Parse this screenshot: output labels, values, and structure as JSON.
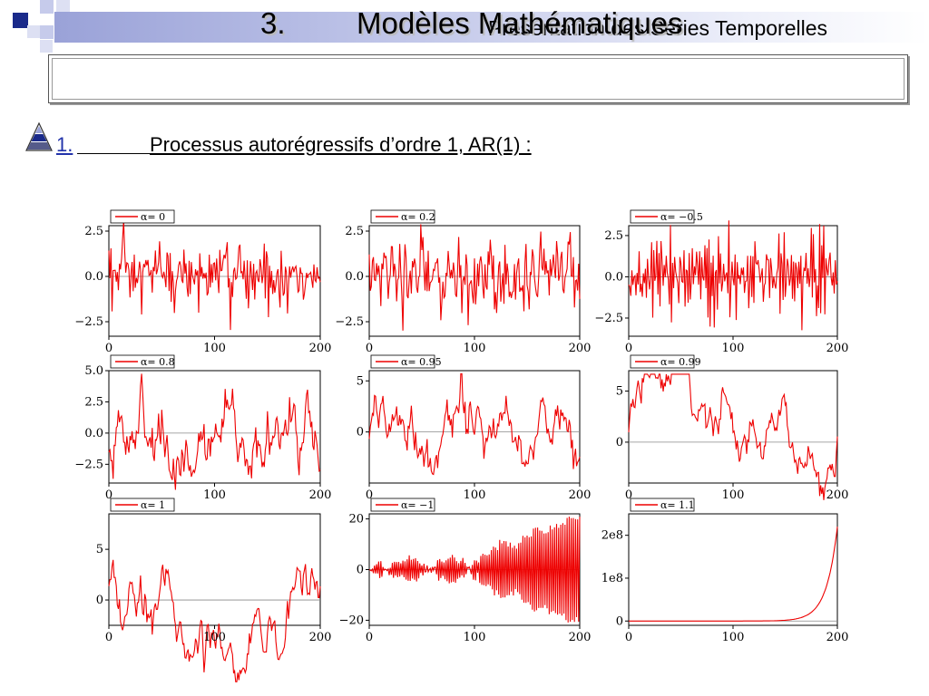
{
  "header": {
    "title": "Présentation des Séries Temporelles"
  },
  "slide": {
    "section_number": "3.",
    "section_title": "Modèles Mathématiques",
    "subsection_number": "1.",
    "subsection_title": "Processus autorégressifs d’ordre 1, AR(1) :"
  },
  "colors": {
    "series": "#ee0000",
    "accent_dark": "#1a2a8a",
    "accent_light": "#9aa2d8",
    "subsection_link": "#2233aa"
  },
  "icons": {
    "bullet": "triangle-pyramid-icon"
  },
  "chart_data": [
    {
      "type": "line",
      "legend": "α= 0",
      "alpha": 0,
      "x_range": [
        0,
        200
      ],
      "xticks": [
        0,
        100,
        200
      ],
      "ylim": [
        -3.3,
        2.8
      ],
      "yticks": [
        2.5,
        0.0,
        -2.5
      ],
      "ytick_labels": [
        "2.5",
        "0.0",
        "−2.5"
      ],
      "n": 200
    },
    {
      "type": "line",
      "legend": "α= 0.2",
      "alpha": 0.2,
      "x_range": [
        0,
        200
      ],
      "xticks": [
        0,
        100,
        200
      ],
      "ylim": [
        -3.3,
        2.8
      ],
      "yticks": [
        2.5,
        0.0,
        -2.5
      ],
      "ytick_labels": [
        "2.5",
        "0.0",
        "−2.5"
      ],
      "n": 200
    },
    {
      "type": "line",
      "legend": "α= −0.5",
      "alpha": -0.5,
      "x_range": [
        0,
        200
      ],
      "xticks": [
        0,
        100,
        200
      ],
      "ylim": [
        -3.6,
        3.1
      ],
      "yticks": [
        2.5,
        0.0,
        -2.5
      ],
      "ytick_labels": [
        "2.5",
        "0.0",
        "−2.5"
      ],
      "n": 200
    },
    {
      "type": "line",
      "legend": "α= 0.8",
      "alpha": 0.8,
      "x_range": [
        0,
        200
      ],
      "xticks": [
        0,
        100,
        200
      ],
      "ylim": [
        -4.0,
        5.0
      ],
      "yticks": [
        5.0,
        2.5,
        0.0,
        -2.5
      ],
      "ytick_labels": [
        "5.0",
        "2.5",
        "0.0",
        "−2.5"
      ],
      "n": 200
    },
    {
      "type": "line",
      "legend": "α= 0.95",
      "alpha": 0.95,
      "x_range": [
        0,
        200
      ],
      "xticks": [
        0,
        100,
        200
      ],
      "ylim": [
        -5.0,
        6.0
      ],
      "yticks": [
        5,
        0
      ],
      "ytick_labels": [
        "5",
        "0"
      ],
      "n": 200
    },
    {
      "type": "line",
      "legend": "α= 0.99",
      "alpha": 0.99,
      "x_range": [
        0,
        200
      ],
      "xticks": [
        0,
        100,
        200
      ],
      "ylim": [
        -4.0,
        7.0
      ],
      "yticks": [
        5,
        0
      ],
      "ytick_labels": [
        "5",
        "0"
      ],
      "n": 200
    },
    {
      "type": "line",
      "legend": "α= 1",
      "alpha": 1,
      "x_range": [
        0,
        200
      ],
      "xticks": [
        0,
        100,
        200
      ],
      "ylim": [
        -2.5,
        8.5
      ],
      "yticks": [
        5,
        0
      ],
      "ytick_labels": [
        "5",
        "0"
      ],
      "n": 200
    },
    {
      "type": "line",
      "legend": "α= −1",
      "alpha": -1,
      "x_range": [
        0,
        200
      ],
      "xticks": [
        0,
        100,
        200
      ],
      "ylim": [
        -22,
        22
      ],
      "yticks": [
        20,
        0,
        -20
      ],
      "ytick_labels": [
        "20",
        "0",
        "−20"
      ],
      "n": 200
    },
    {
      "type": "line",
      "legend": "α= 1.1",
      "alpha": 1.1,
      "x_range": [
        0,
        200
      ],
      "xticks": [
        0,
        100,
        200
      ],
      "ylim": [
        -10000000.0,
        250000000.0
      ],
      "yticks": [
        200000000.0,
        100000000.0,
        0
      ],
      "ytick_labels": [
        "2e8",
        "1e8",
        "0"
      ],
      "n": 200
    }
  ]
}
